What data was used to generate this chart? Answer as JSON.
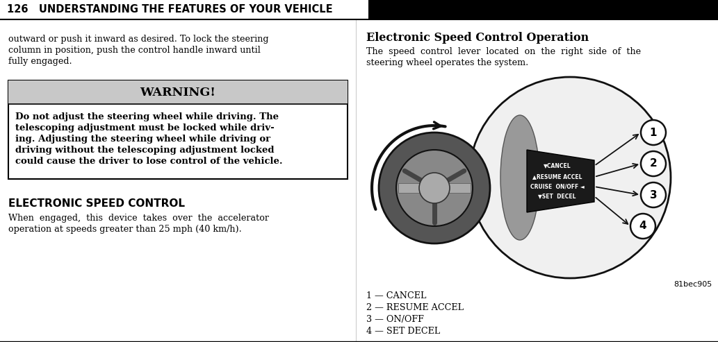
{
  "bg_color": "#ffffff",
  "header_bg_left": "#ffffff",
  "header_bg_right": "#000000",
  "header_text": "126   UNDERSTANDING THE FEATURES OF YOUR VEHICLE",
  "header_text_color": "#000000",
  "header_fontsize": 10.5,
  "left_top_text_line1": "outward or push it inward as desired. To lock the steering",
  "left_top_text_line2": "column in position, push the control handle inward until",
  "left_top_text_line3": "fully engaged.",
  "warning_header": "WARNING!",
  "warning_body_lines": [
    "Do not adjust the steering wheel while driving. The",
    "telescoping adjustment must be locked while driv-",
    "ing. Adjusting the steering wheel while driving or",
    "driving without the telescoping adjustment locked",
    "could cause the driver to lose control of the vehicle."
  ],
  "elec_header": "ELECTRONIC SPEED CONTROL",
  "elec_body_line1": "When  engaged,  this  device  takes  over  the  accelerator",
  "elec_body_line2": "operation at speeds greater than 25 mph (40 km/h).",
  "right_subheader": "Electronic Speed Control Operation",
  "right_body_line1": "The  speed  control  lever  located  on  the  right  side  of  the",
  "right_body_line2": "steering wheel operates the system.",
  "legend_lines": [
    "1 — CANCEL",
    "2 — RESUME ACCEL",
    "3 — ON/OFF",
    "4 — SET DECEL"
  ],
  "image_caption": "81bec905",
  "sw_color_outer": "#555555",
  "sw_color_inner": "#999999",
  "sw_color_hub": "#aaaaaa",
  "lever_color": "#222222",
  "circle_bg": "#cccccc"
}
